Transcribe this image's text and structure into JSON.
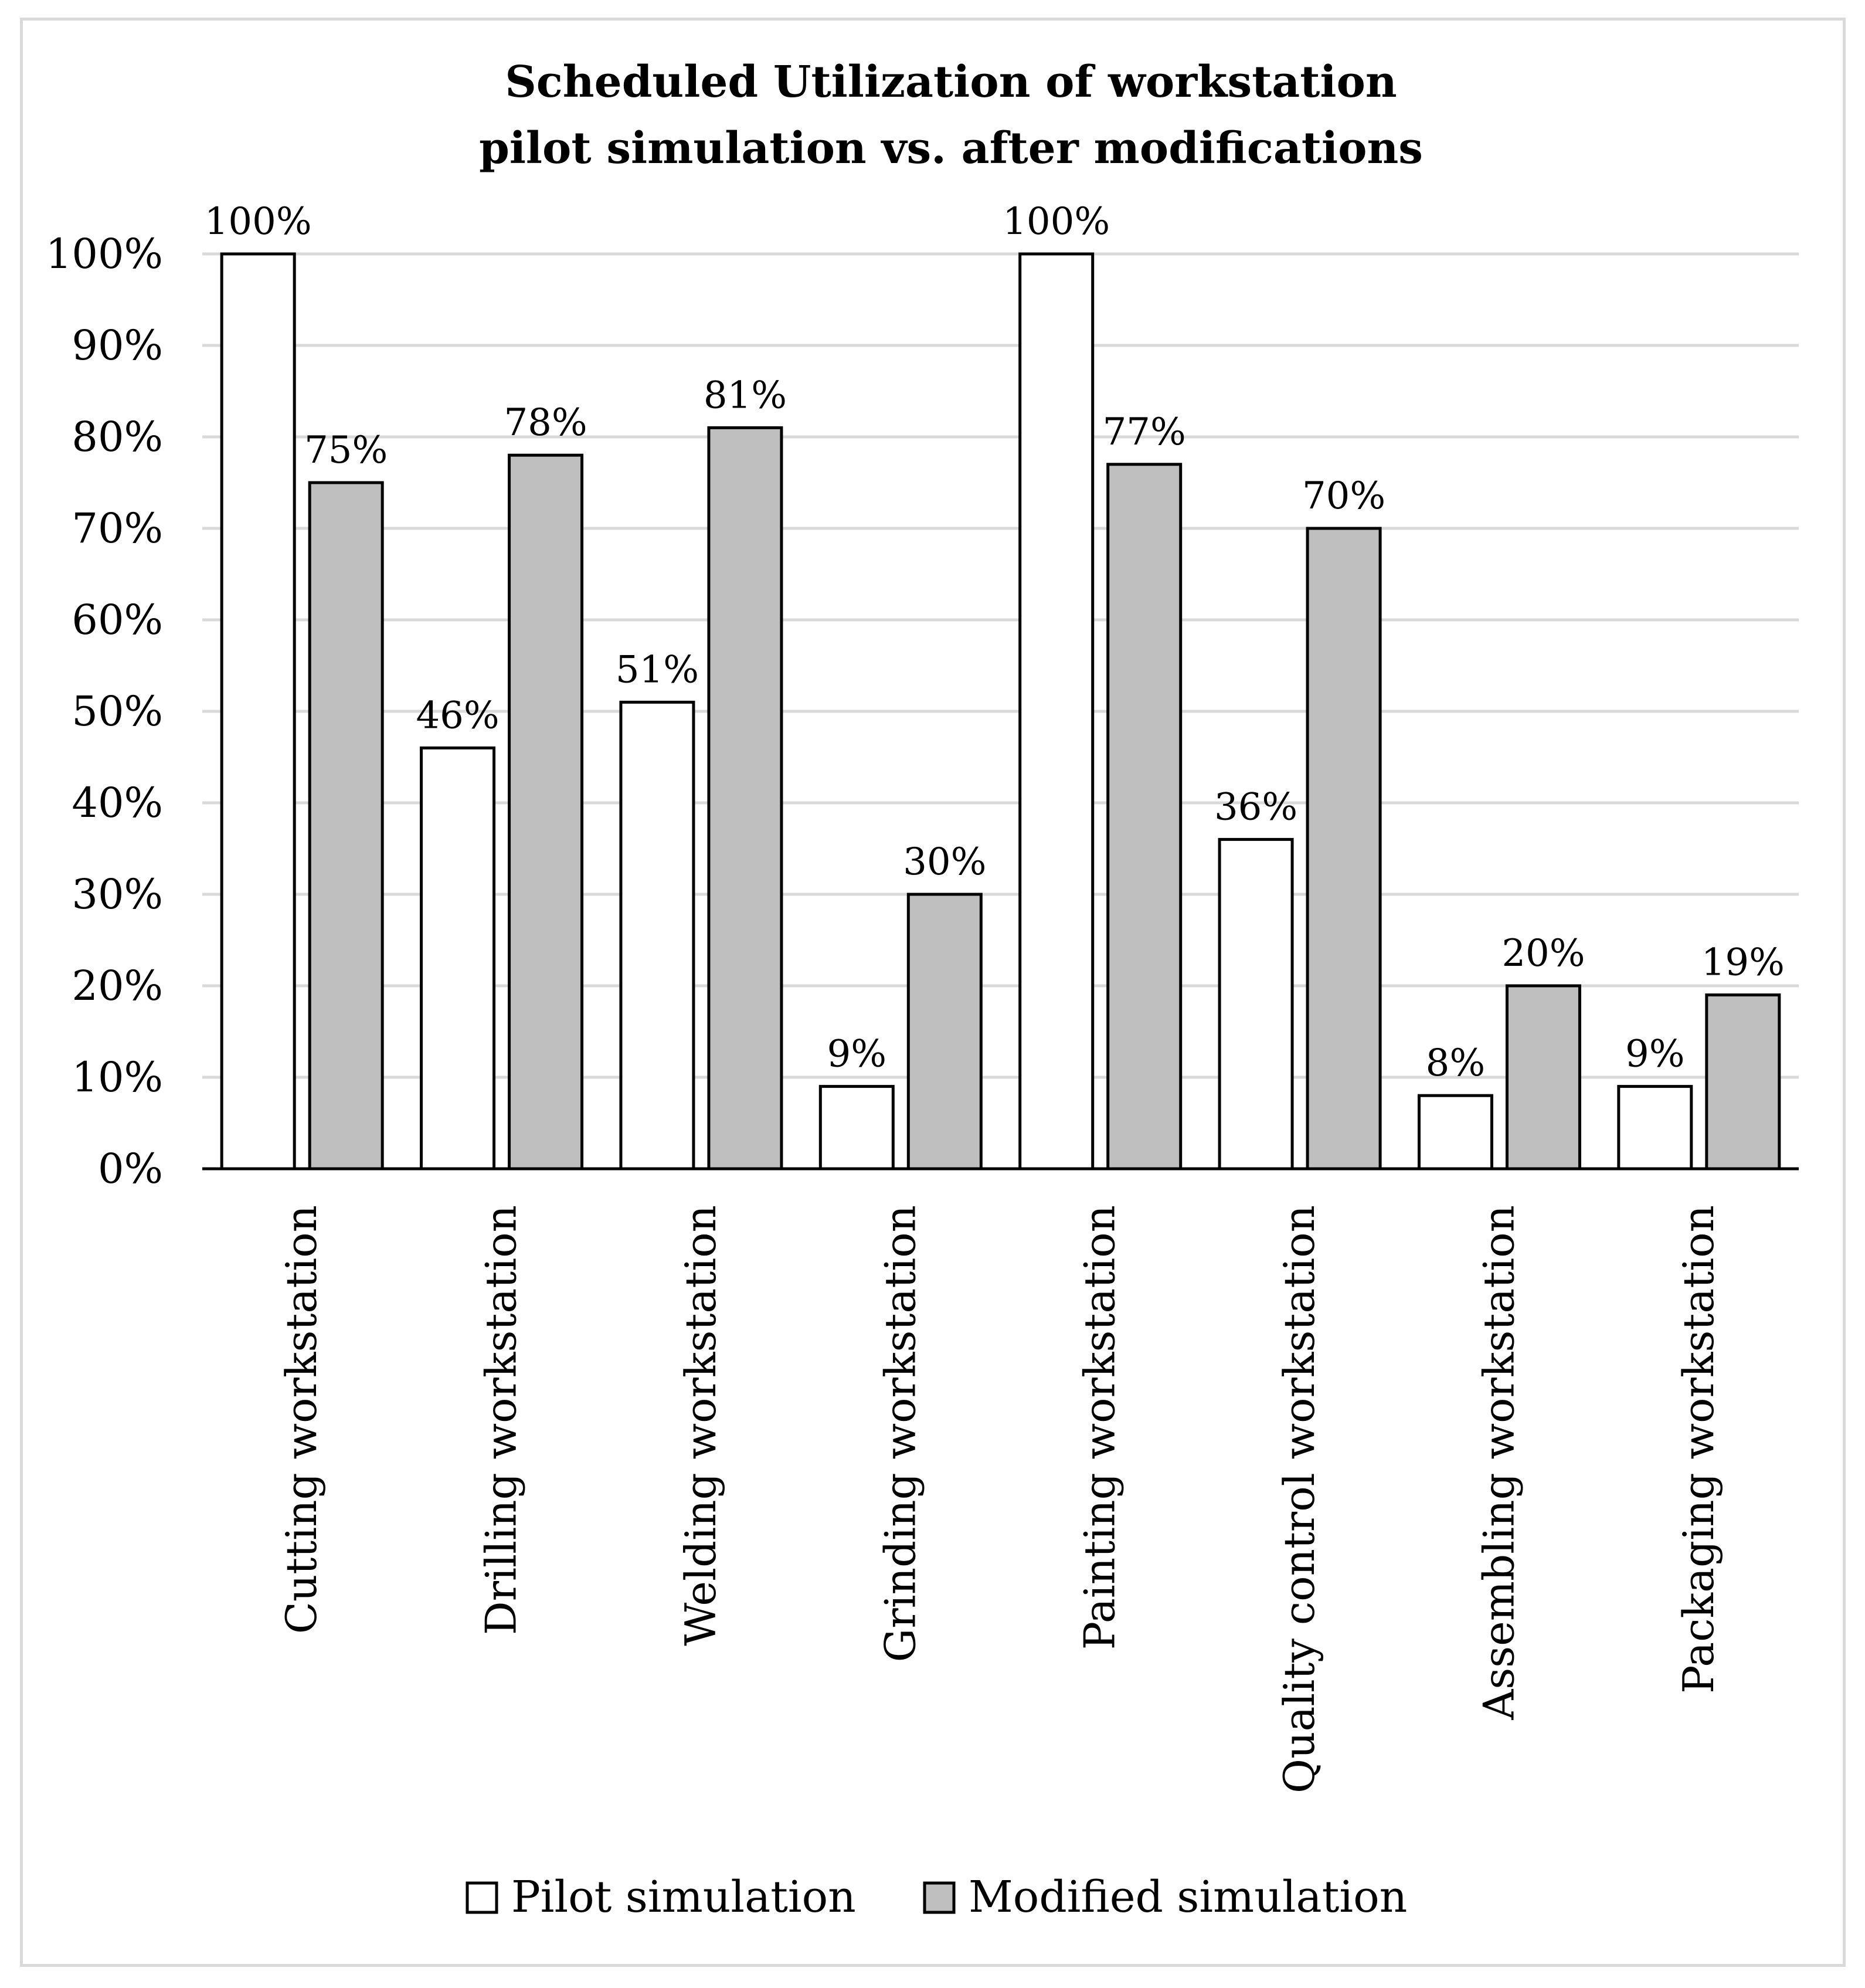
{
  "chart_data": {
    "type": "bar",
    "title": "Scheduled Utilization of workstation",
    "subtitle": "pilot simulation vs. after modifications",
    "categories": [
      "Cutting workstation",
      "Drilling workstation",
      "Welding workstation",
      "Grinding workstation",
      "Painting workstation",
      "Quality control workstation",
      "Assembling workstation",
      "Packaging workstation"
    ],
    "series": [
      {
        "name": "Pilot simulation",
        "values": [
          100,
          46,
          51,
          9,
          100,
          36,
          8,
          9
        ],
        "labels": [
          "100%",
          "46%",
          "51%",
          "9%",
          "100%",
          "36%",
          "8%",
          "9%"
        ],
        "color": "#ffffff"
      },
      {
        "name": "Modified simulation",
        "values": [
          75,
          78,
          81,
          30,
          77,
          70,
          20,
          19
        ],
        "labels": [
          "75%",
          "78%",
          "81%",
          "30%",
          "77%",
          "70%",
          "20%",
          "19%"
        ],
        "color": "#bfbfbf"
      }
    ],
    "y_ticks": [
      "0%",
      "10%",
      "20%",
      "30%",
      "40%",
      "50%",
      "60%",
      "70%",
      "80%",
      "90%",
      "100%"
    ],
    "ylim": [
      0,
      100
    ],
    "xlabel": "",
    "ylabel": "",
    "grid": true,
    "legend_position": "bottom"
  },
  "colors": {
    "gridline": "#d9d9d9",
    "axis": "#000000",
    "bar_outline": "#000000",
    "frame": "#d9d9d9"
  }
}
